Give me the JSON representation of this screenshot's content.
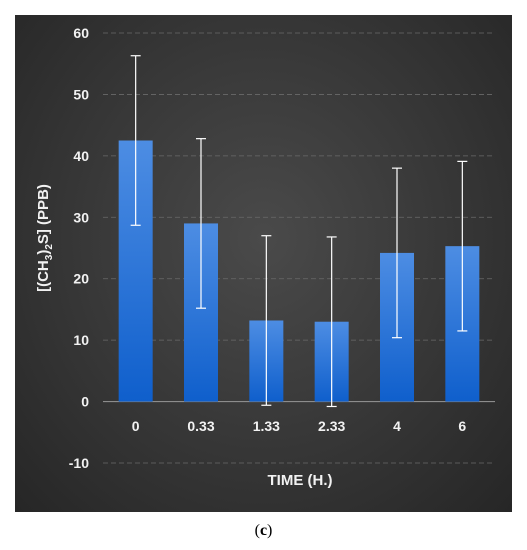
{
  "chart_data": {
    "type": "bar",
    "categories": [
      "0",
      "0.33",
      "1.33",
      "2.33",
      "4",
      "6"
    ],
    "values": [
      42.5,
      29.0,
      13.2,
      13.0,
      24.2,
      25.3
    ],
    "error_bars": [
      13.8,
      13.8,
      13.8,
      13.8,
      13.8,
      13.8
    ],
    "xlabel": "TIME (H.)",
    "ylabel": "[(CH3)2S] (PPB)",
    "ylabel_parts": {
      "open": "[(CH",
      "sub1": "3",
      "mid": ")",
      "sub2": "2",
      "close": "S] (PPB)"
    },
    "ylim": [
      -10,
      60
    ],
    "yticks": [
      -10,
      0,
      10,
      20,
      30,
      40,
      50,
      60
    ],
    "grid": true,
    "legend": "none"
  },
  "colors": {
    "bar_top": "#4d8de3",
    "bar_bottom": "#0f5fcc",
    "error_bar": "#ffffff",
    "gridline": "#6a6a6a",
    "text": "#f2f2f2",
    "background": "#3a3a3a"
  },
  "caption": {
    "open": "(",
    "letter": "c",
    "close": ")"
  }
}
